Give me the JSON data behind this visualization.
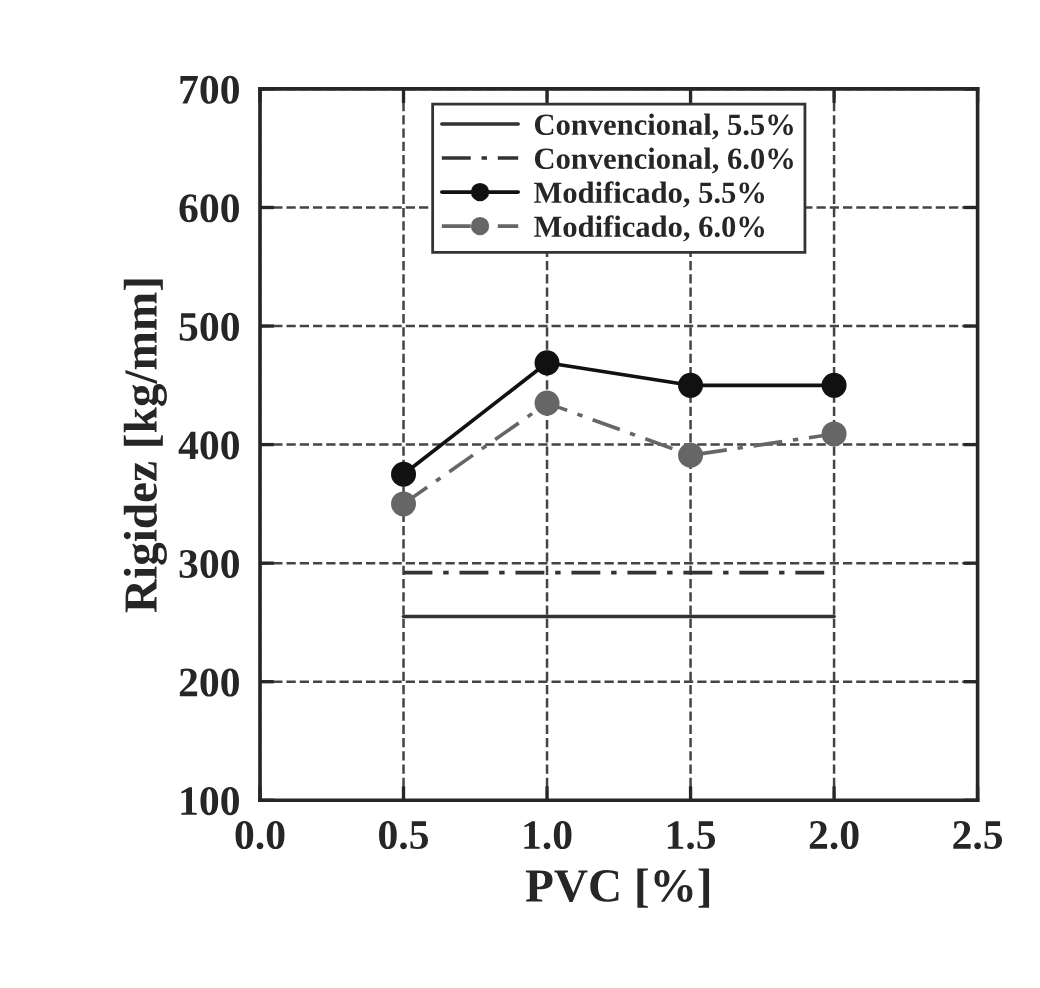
{
  "chart_data": {
    "type": "line",
    "xlabel": "PVC [%]",
    "ylabel": "Rigidez [kg/mm]",
    "xlim": [
      0.0,
      2.5
    ],
    "xticks": [
      {
        "value": 0.0,
        "label": "0.0"
      },
      {
        "value": 0.5,
        "label": "0.5"
      },
      {
        "value": 1.0,
        "label": "1.0"
      },
      {
        "value": 1.5,
        "label": "1.5"
      },
      {
        "value": 2.0,
        "label": "2.0"
      },
      {
        "value": 2.5,
        "label": "2.5"
      }
    ],
    "ylim": [
      100,
      700
    ],
    "yticks": [
      100,
      200,
      300,
      400,
      500,
      600,
      700
    ],
    "grid": true,
    "legend": "top",
    "series": [
      {
        "name": "Convencional, 5.5%",
        "color": "#333333",
        "x": [
          0.5,
          2.0
        ],
        "values": [
          255,
          255
        ],
        "line_style": "solid",
        "marker": "none"
      },
      {
        "name": "Convencional, 6.0%",
        "color": "#333333",
        "x": [
          0.5,
          2.0
        ],
        "values": [
          292,
          292
        ],
        "line_style": "dashed",
        "marker": "none"
      },
      {
        "name": "Modificado, 5.5%",
        "color": "#111111",
        "x": [
          0.5,
          1.0,
          1.5,
          2.0
        ],
        "values": [
          375,
          469,
          450,
          450
        ],
        "line_style": "solid",
        "marker": "circle"
      },
      {
        "name": "Modificado, 6.0%",
        "color": "#666666",
        "x": [
          0.5,
          1.0,
          1.5,
          2.0
        ],
        "values": [
          350,
          435,
          391,
          409
        ],
        "line_style": "dashed",
        "marker": "circle"
      }
    ]
  }
}
